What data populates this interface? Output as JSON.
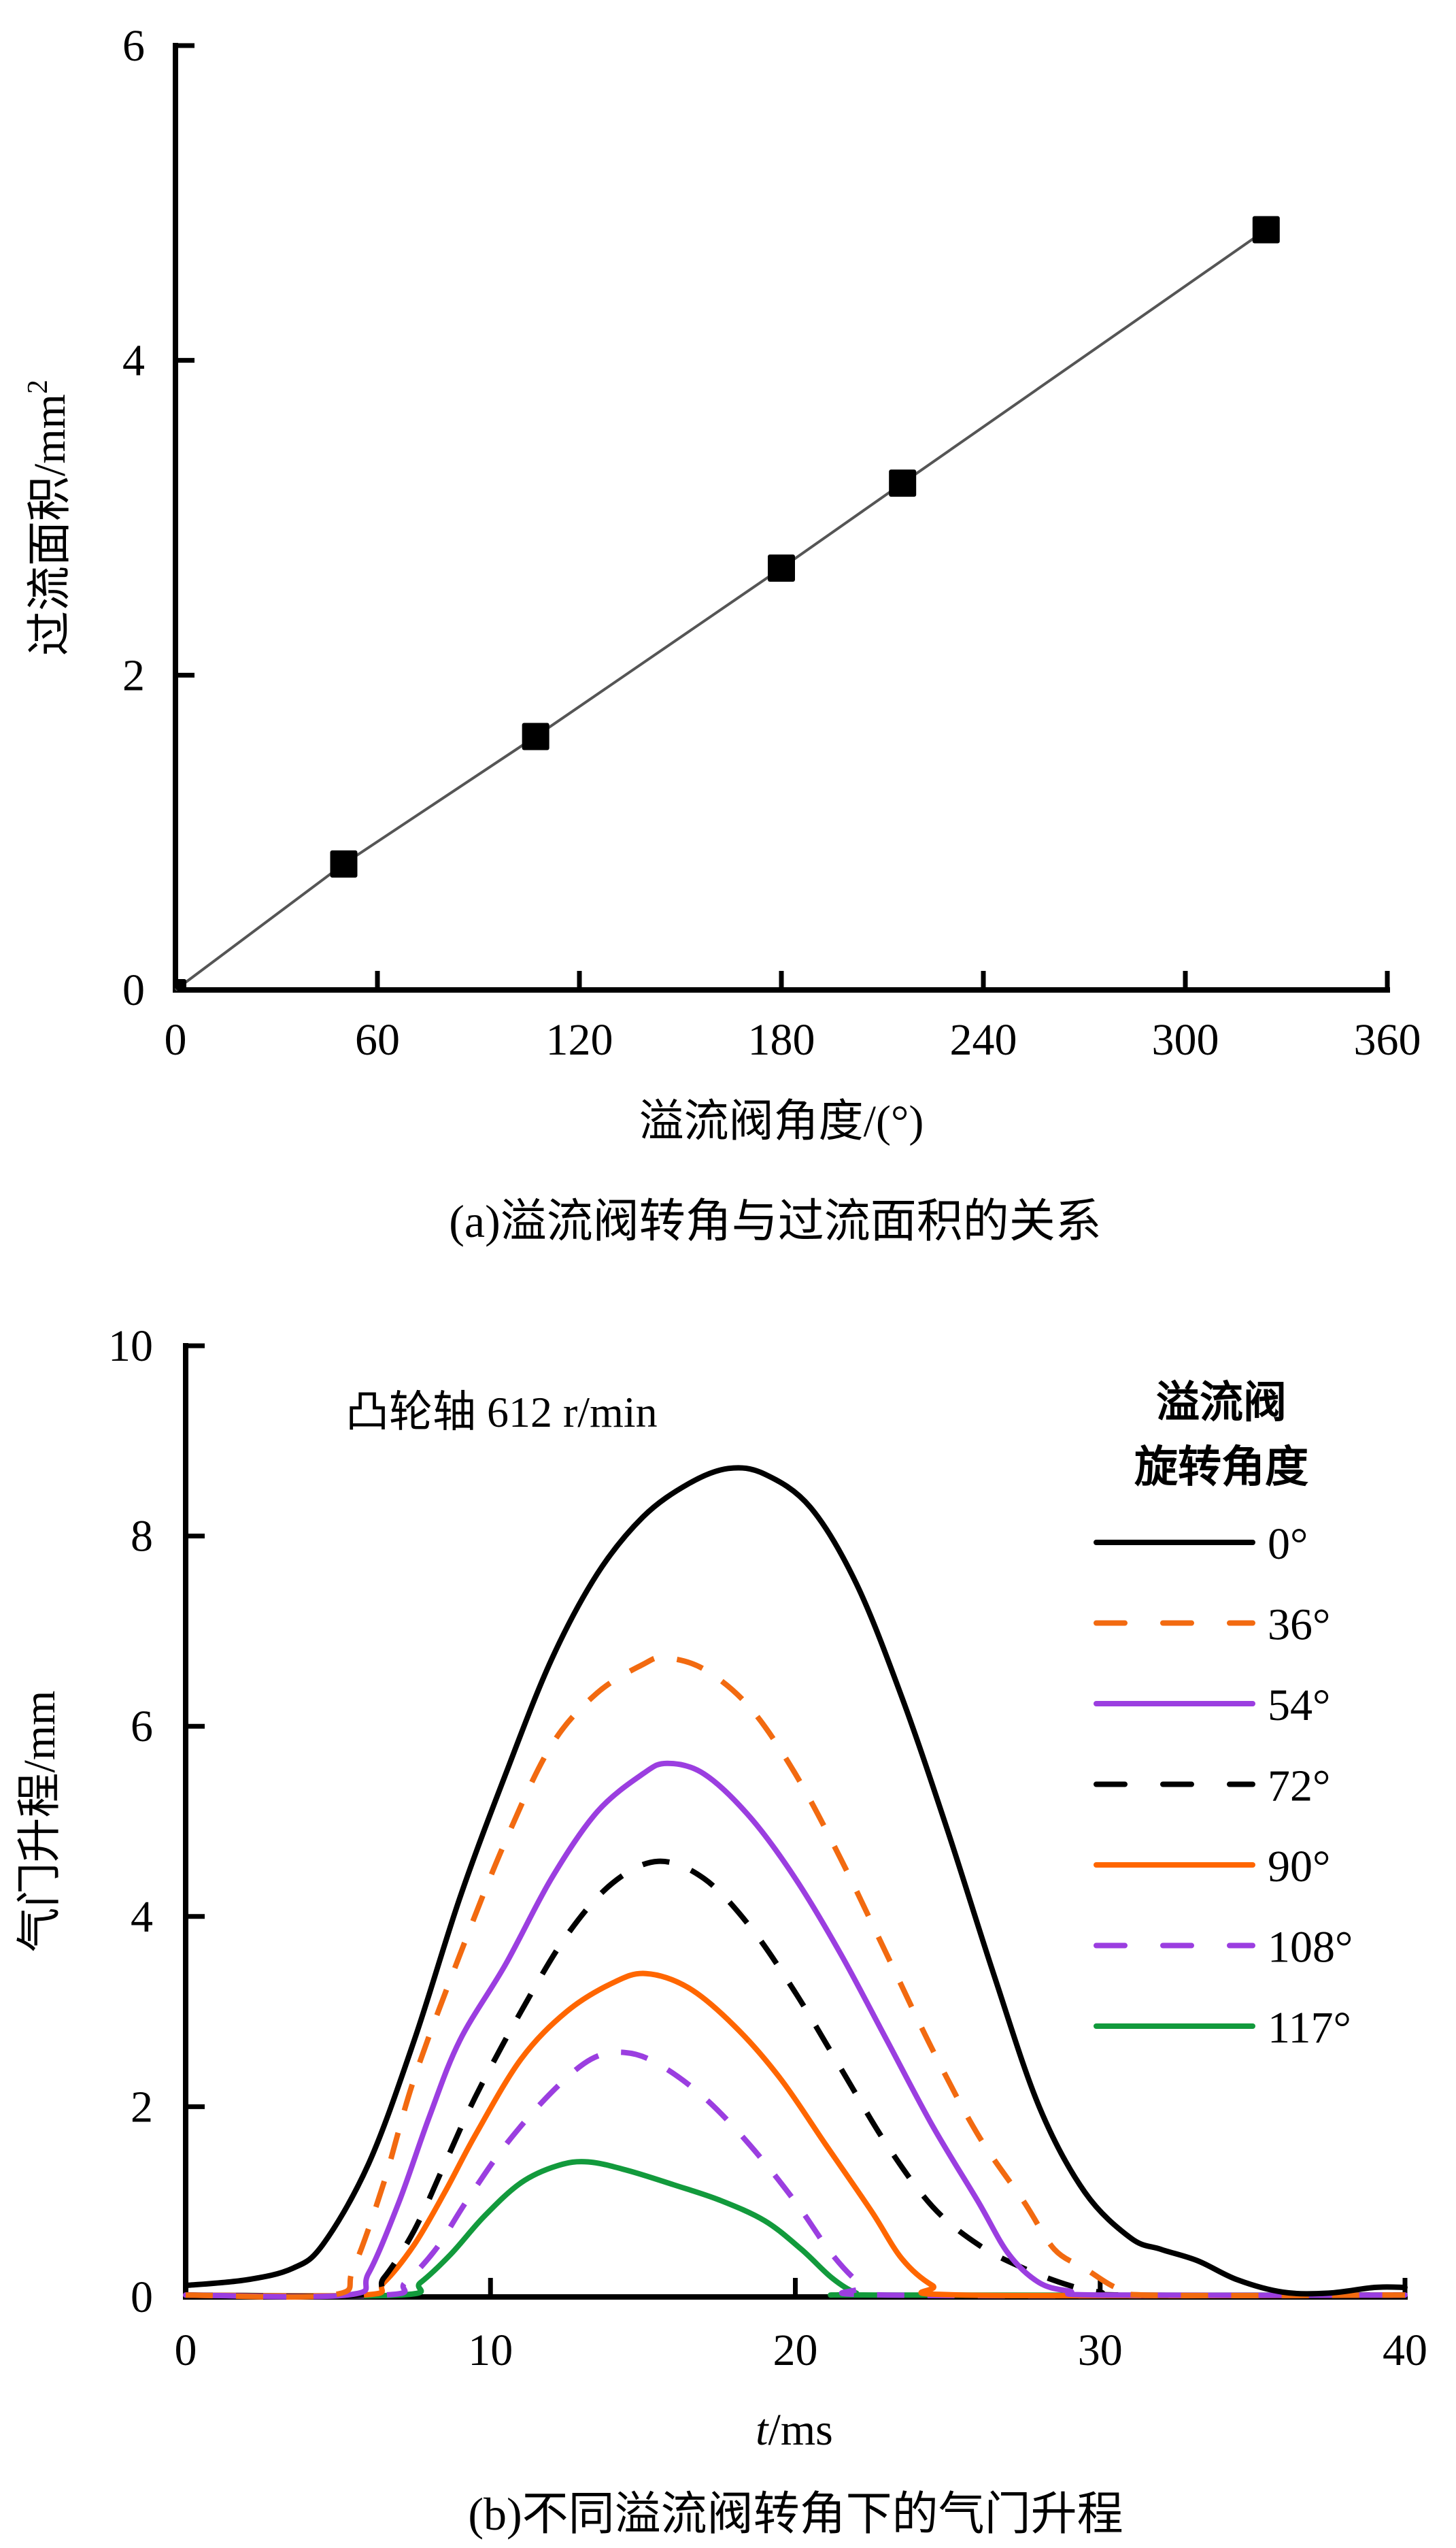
{
  "chart_data": [
    {
      "type": "line",
      "panel": "a",
      "caption": "(a)溢流阀转角与过流面积的关系",
      "xlabel": "溢流阀角度/(°)",
      "ylabel": "过流面积/mm",
      "ylabel_sup": "2",
      "xlim": [
        0,
        360
      ],
      "ylim": [
        0,
        6
      ],
      "xticks": [
        0,
        60,
        120,
        180,
        240,
        300,
        360
      ],
      "xtick_labels": [
        "0",
        "60",
        "120",
        "180",
        "240",
        "300",
        "360"
      ],
      "yticks": [
        0,
        2,
        4,
        6
      ],
      "ytick_labels": [
        "0",
        "2",
        "4",
        "6"
      ],
      "grid": false,
      "series": [
        {
          "name": "过流面积",
          "marker": "square",
          "color": "#000000",
          "line_color": "#555555",
          "x": [
            0,
            50,
            107,
            180,
            216,
            324
          ],
          "y": [
            0,
            0.8,
            1.61,
            2.68,
            3.22,
            4.83
          ]
        }
      ]
    },
    {
      "type": "line",
      "panel": "b",
      "caption": "(b)不同溢流阀转角下的气门升程",
      "xlabel_italic": "t",
      "xlabel_rest": "/ms",
      "ylabel": "气门升程/mm",
      "annotation": "凸轮轴 612 r/min",
      "legend_title": [
        "溢流阀",
        "旋转角度"
      ],
      "legend_position": "top-right",
      "xlim": [
        0,
        40
      ],
      "ylim": [
        0,
        10
      ],
      "xticks": [
        0,
        10,
        20,
        30,
        40
      ],
      "xtick_labels": [
        "0",
        "10",
        "20",
        "30",
        "40"
      ],
      "yticks": [
        0,
        2,
        4,
        6,
        8,
        10
      ],
      "ytick_labels": [
        "0",
        "2",
        "4",
        "6",
        "8",
        "10"
      ],
      "grid": false,
      "series": [
        {
          "name": "0°",
          "color": "#000000",
          "dash": "solid",
          "points": [
            [
              0,
              0.12
            ],
            [
              2,
              0.18
            ],
            [
              3.5,
              0.3
            ],
            [
              4.5,
              0.55
            ],
            [
              6,
              1.4
            ],
            [
              7.5,
              2.7
            ],
            [
              9,
              4.2
            ],
            [
              10.5,
              5.5
            ],
            [
              12,
              6.7
            ],
            [
              13.5,
              7.6
            ],
            [
              15,
              8.2
            ],
            [
              16.5,
              8.55
            ],
            [
              17.8,
              8.71
            ],
            [
              19,
              8.65
            ],
            [
              20.5,
              8.3
            ],
            [
              22,
              7.5
            ],
            [
              23.5,
              6.3
            ],
            [
              25,
              4.9
            ],
            [
              26.5,
              3.4
            ],
            [
              28,
              2.0
            ],
            [
              29.5,
              1.1
            ],
            [
              31,
              0.62
            ],
            [
              32,
              0.5
            ],
            [
              33.2,
              0.38
            ],
            [
              34.5,
              0.18
            ],
            [
              36,
              0.05
            ],
            [
              37.5,
              0.04
            ],
            [
              39,
              0.1
            ],
            [
              40,
              0.1
            ]
          ]
        },
        {
          "name": "36°",
          "color": "#f26a10",
          "dash": "dashed",
          "points": [
            [
              0,
              0.02
            ],
            [
              4.8,
              0.02
            ],
            [
              5.5,
              0.3
            ],
            [
              6.5,
              1.2
            ],
            [
              7.5,
              2.3
            ],
            [
              9,
              3.6
            ],
            [
              10.5,
              4.8
            ],
            [
              12,
              5.8
            ],
            [
              13.5,
              6.35
            ],
            [
              15,
              6.65
            ],
            [
              15.7,
              6.72
            ],
            [
              17,
              6.6
            ],
            [
              18.5,
              6.2
            ],
            [
              20,
              5.5
            ],
            [
              21.5,
              4.6
            ],
            [
              23,
              3.6
            ],
            [
              24.5,
              2.6
            ],
            [
              26,
              1.7
            ],
            [
              27.5,
              1.0
            ],
            [
              28.5,
              0.5
            ],
            [
              29.5,
              0.3
            ],
            [
              30.5,
              0.1
            ],
            [
              31.5,
              0.02
            ],
            [
              40,
              0.02
            ]
          ]
        },
        {
          "name": "54°",
          "color": "#9b3ee0",
          "dash": "solid",
          "points": [
            [
              0,
              0.02
            ],
            [
              5.3,
              0.02
            ],
            [
              6,
              0.25
            ],
            [
              7,
              1.0
            ],
            [
              8,
              1.9
            ],
            [
              9,
              2.7
            ],
            [
              10.5,
              3.5
            ],
            [
              12,
              4.4
            ],
            [
              13.5,
              5.1
            ],
            [
              15,
              5.5
            ],
            [
              15.8,
              5.61
            ],
            [
              17,
              5.5
            ],
            [
              18.5,
              5.05
            ],
            [
              20,
              4.4
            ],
            [
              21.5,
              3.6
            ],
            [
              23,
              2.7
            ],
            [
              24.5,
              1.8
            ],
            [
              26,
              1.0
            ],
            [
              27,
              0.45
            ],
            [
              28,
              0.15
            ],
            [
              29,
              0.06
            ],
            [
              30,
              0.02
            ],
            [
              40,
              0.02
            ]
          ]
        },
        {
          "name": "72°",
          "color": "#000000",
          "dash": "dashed",
          "points": [
            [
              0,
              0.02
            ],
            [
              5.8,
              0.02
            ],
            [
              6.5,
              0.2
            ],
            [
              7.5,
              0.7
            ],
            [
              8.5,
              1.4
            ],
            [
              9.5,
              2.1
            ],
            [
              11,
              3.0
            ],
            [
              12.5,
              3.8
            ],
            [
              14,
              4.35
            ],
            [
              15.5,
              4.58
            ],
            [
              17,
              4.4
            ],
            [
              18.5,
              3.9
            ],
            [
              20,
              3.2
            ],
            [
              21.5,
              2.4
            ],
            [
              23,
              1.6
            ],
            [
              24.5,
              0.95
            ],
            [
              26,
              0.55
            ],
            [
              27.5,
              0.3
            ],
            [
              29,
              0.12
            ],
            [
              30,
              0.05
            ],
            [
              31,
              0.02
            ],
            [
              40,
              0.02
            ]
          ]
        },
        {
          "name": "90°",
          "color": "#ff6600",
          "dash": "solid",
          "points": [
            [
              0,
              0.02
            ],
            [
              5.8,
              0.02
            ],
            [
              6.5,
              0.15
            ],
            [
              7.5,
              0.55
            ],
            [
              8.5,
              1.1
            ],
            [
              9.5,
              1.7
            ],
            [
              11,
              2.5
            ],
            [
              12.5,
              3.0
            ],
            [
              14,
              3.3
            ],
            [
              15.1,
              3.4
            ],
            [
              16.5,
              3.25
            ],
            [
              18,
              2.85
            ],
            [
              19.5,
              2.3
            ],
            [
              21,
              1.6
            ],
            [
              22.5,
              0.9
            ],
            [
              23.5,
              0.4
            ],
            [
              24.5,
              0.12
            ],
            [
              25.5,
              0.02
            ],
            [
              40,
              0.02
            ]
          ]
        },
        {
          "name": "108°",
          "color": "#9b3ee0",
          "dash": "dashed",
          "points": [
            [
              0,
              0.02
            ],
            [
              6.5,
              0.02
            ],
            [
              7.2,
              0.15
            ],
            [
              8.2,
              0.5
            ],
            [
              9.2,
              1.0
            ],
            [
              10.5,
              1.6
            ],
            [
              12,
              2.15
            ],
            [
              13.3,
              2.5
            ],
            [
              14.4,
              2.57
            ],
            [
              15.5,
              2.45
            ],
            [
              17,
              2.1
            ],
            [
              18.5,
              1.6
            ],
            [
              20,
              1.0
            ],
            [
              21.2,
              0.45
            ],
            [
              22.2,
              0.12
            ],
            [
              23,
              0.02
            ],
            [
              40,
              0.02
            ]
          ]
        },
        {
          "name": "117°",
          "color": "#129a3c",
          "dash": "solid",
          "points": [
            [
              0,
              0.02
            ],
            [
              7,
              0.02
            ],
            [
              7.7,
              0.15
            ],
            [
              8.7,
              0.45
            ],
            [
              9.8,
              0.85
            ],
            [
              11,
              1.2
            ],
            [
              12.2,
              1.38
            ],
            [
              13.2,
              1.42
            ],
            [
              14.5,
              1.33
            ],
            [
              16,
              1.18
            ],
            [
              17.5,
              1.02
            ],
            [
              19,
              0.8
            ],
            [
              20.2,
              0.5
            ],
            [
              21.2,
              0.2
            ],
            [
              22,
              0.04
            ],
            [
              22.6,
              0.02
            ],
            [
              40,
              0.02
            ]
          ]
        }
      ]
    }
  ]
}
